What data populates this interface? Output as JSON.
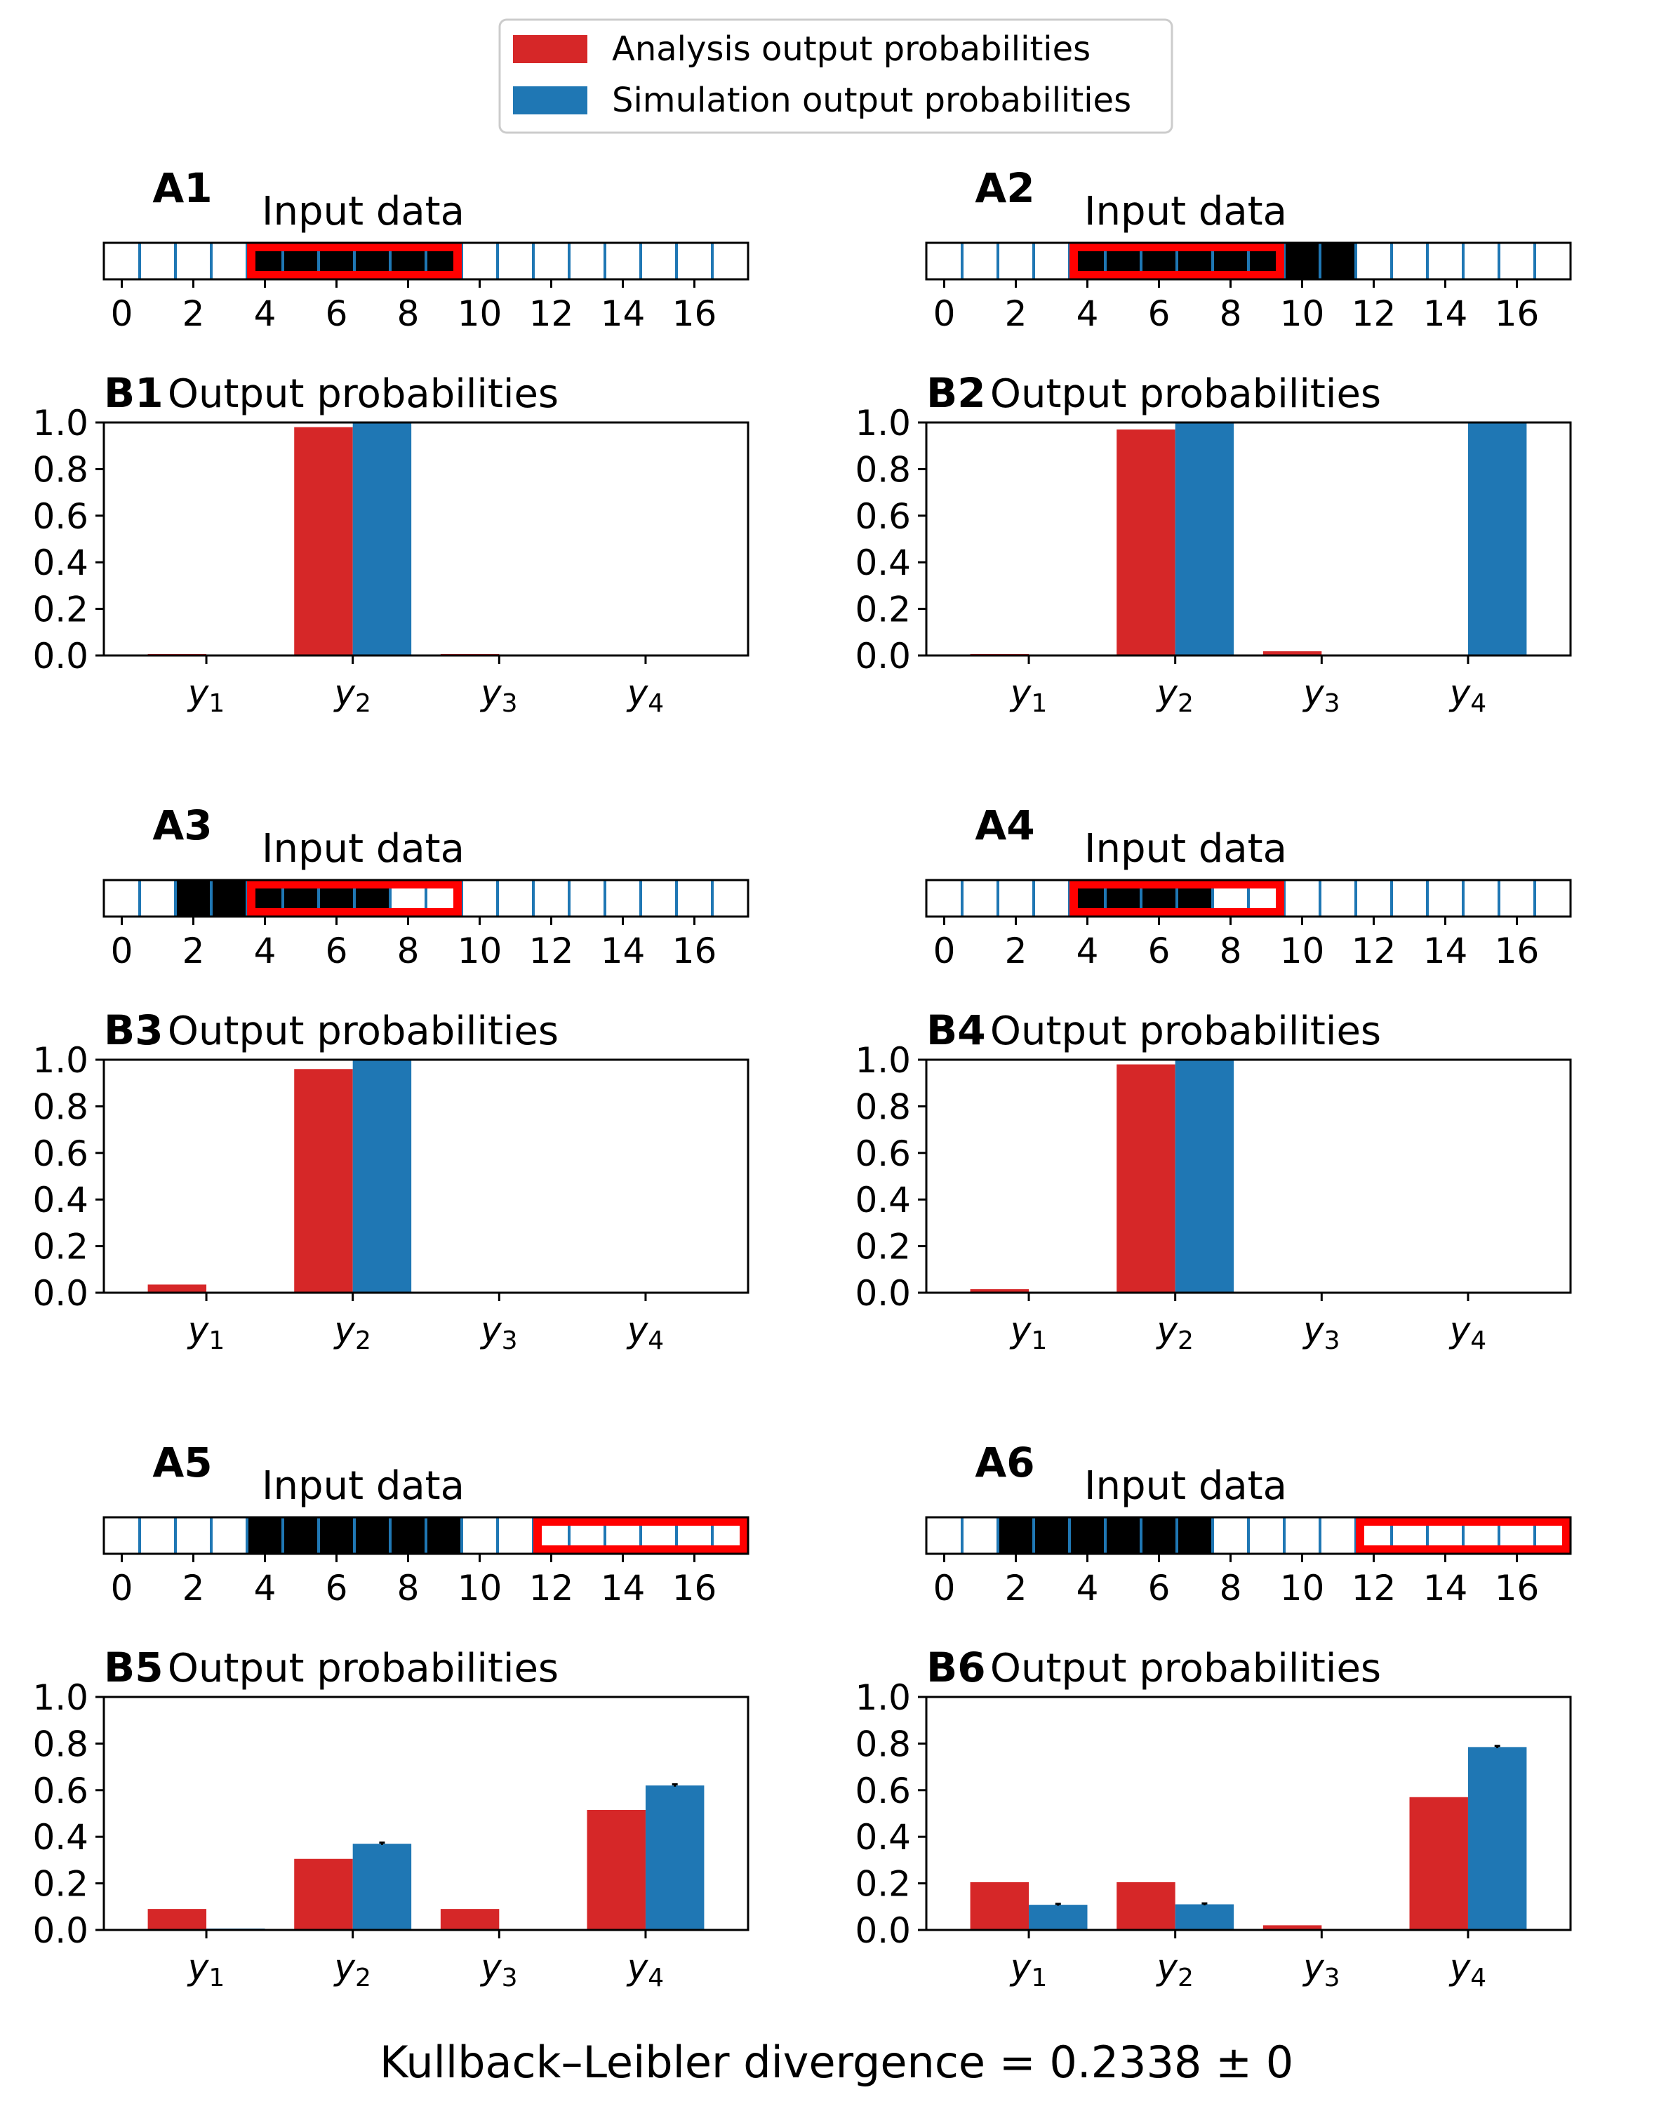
{
  "colors": {
    "analysis": "#d62728",
    "simulation": "#1f77b4",
    "input_on": "#000000",
    "highlight": "#ff0000",
    "cell_divider": "#1f77b4"
  },
  "legend": {
    "placement": "top-center",
    "entries": [
      "Analysis output probabilities",
      "Simulation output probabilities"
    ]
  },
  "footer": {
    "kl_label": "Kullback–Leibler divergence = 0.2338 ± 0"
  },
  "chart_data": [
    {
      "panel": "A1",
      "type": "binary-strip",
      "title": "Input data",
      "n_cells": 18,
      "xlim": [
        -0.5,
        17.5
      ],
      "xticks": [
        0,
        2,
        4,
        6,
        8,
        10,
        12,
        14,
        16
      ],
      "active": [
        4,
        5,
        6,
        7,
        8,
        9
      ],
      "highlight": [
        4,
        9
      ]
    },
    {
      "panel": "B1",
      "type": "bar",
      "title": "Output probabilities",
      "categories": [
        "y1",
        "y2",
        "y3",
        "y4"
      ],
      "ylim": [
        0,
        1
      ],
      "yticks": [
        0.0,
        0.2,
        0.4,
        0.6,
        0.8,
        1.0
      ],
      "series": [
        {
          "name": "Analysis output probabilities",
          "values": [
            0.006,
            0.98,
            0.006,
            0.0
          ]
        },
        {
          "name": "Simulation output probabilities",
          "values": [
            0.0,
            1.0,
            0.0,
            0.0
          ]
        }
      ]
    },
    {
      "panel": "A2",
      "type": "binary-strip",
      "title": "Input data",
      "n_cells": 18,
      "xlim": [
        -0.5,
        17.5
      ],
      "xticks": [
        0,
        2,
        4,
        6,
        8,
        10,
        12,
        14,
        16
      ],
      "active": [
        4,
        5,
        6,
        7,
        8,
        9,
        10,
        11
      ],
      "highlight": [
        4,
        9
      ]
    },
    {
      "panel": "B2",
      "type": "bar",
      "title": "Output probabilities",
      "categories": [
        "y1",
        "y2",
        "y3",
        "y4"
      ],
      "ylim": [
        0,
        1
      ],
      "yticks": [
        0.0,
        0.2,
        0.4,
        0.6,
        0.8,
        1.0
      ],
      "series": [
        {
          "name": "Analysis output probabilities",
          "values": [
            0.006,
            0.97,
            0.018,
            0.0
          ]
        },
        {
          "name": "Simulation output probabilities",
          "values": [
            0.0,
            1.0,
            0.0,
            1.0
          ]
        }
      ]
    },
    {
      "panel": "A3",
      "type": "binary-strip",
      "title": "Input data",
      "n_cells": 18,
      "xlim": [
        -0.5,
        17.5
      ],
      "xticks": [
        0,
        2,
        4,
        6,
        8,
        10,
        12,
        14,
        16
      ],
      "active": [
        2,
        3,
        4,
        5,
        6,
        7
      ],
      "highlight": [
        4,
        9
      ]
    },
    {
      "panel": "B3",
      "type": "bar",
      "title": "Output probabilities",
      "categories": [
        "y1",
        "y2",
        "y3",
        "y4"
      ],
      "ylim": [
        0,
        1
      ],
      "yticks": [
        0.0,
        0.2,
        0.4,
        0.6,
        0.8,
        1.0
      ],
      "series": [
        {
          "name": "Analysis output probabilities",
          "values": [
            0.035,
            0.96,
            0.0,
            0.0
          ]
        },
        {
          "name": "Simulation output probabilities",
          "values": [
            0.0,
            1.0,
            0.0,
            0.0
          ]
        }
      ]
    },
    {
      "panel": "A4",
      "type": "binary-strip",
      "title": "Input data",
      "n_cells": 18,
      "xlim": [
        -0.5,
        17.5
      ],
      "xticks": [
        0,
        2,
        4,
        6,
        8,
        10,
        12,
        14,
        16
      ],
      "active": [
        4,
        5,
        6,
        7
      ],
      "highlight": [
        4,
        9
      ]
    },
    {
      "panel": "B4",
      "type": "bar",
      "title": "Output probabilities",
      "categories": [
        "y1",
        "y2",
        "y3",
        "y4"
      ],
      "ylim": [
        0,
        1
      ],
      "yticks": [
        0.0,
        0.2,
        0.4,
        0.6,
        0.8,
        1.0
      ],
      "series": [
        {
          "name": "Analysis output probabilities",
          "values": [
            0.015,
            0.98,
            0.0,
            0.0
          ]
        },
        {
          "name": "Simulation output probabilities",
          "values": [
            0.0,
            1.0,
            0.0,
            0.0
          ]
        }
      ]
    },
    {
      "panel": "A5",
      "type": "binary-strip",
      "title": "Input data",
      "n_cells": 18,
      "xlim": [
        -0.5,
        17.5
      ],
      "xticks": [
        0,
        2,
        4,
        6,
        8,
        10,
        12,
        14,
        16
      ],
      "active": [
        4,
        5,
        6,
        7,
        8,
        9
      ],
      "highlight": [
        12,
        17
      ]
    },
    {
      "panel": "B5",
      "type": "bar",
      "title": "Output probabilities",
      "categories": [
        "y1",
        "y2",
        "y3",
        "y4"
      ],
      "ylim": [
        0,
        1
      ],
      "yticks": [
        0.0,
        0.2,
        0.4,
        0.6,
        0.8,
        1.0
      ],
      "series": [
        {
          "name": "Analysis output probabilities",
          "values": [
            0.09,
            0.305,
            0.09,
            0.515
          ]
        },
        {
          "name": "Simulation output probabilities",
          "values": [
            0.006,
            0.37,
            0.003,
            0.62
          ],
          "errors": [
            0,
            0.005,
            0,
            0.005
          ]
        }
      ]
    },
    {
      "panel": "A6",
      "type": "binary-strip",
      "title": "Input data",
      "n_cells": 18,
      "xlim": [
        -0.5,
        17.5
      ],
      "xticks": [
        0,
        2,
        4,
        6,
        8,
        10,
        12,
        14,
        16
      ],
      "active": [
        2,
        3,
        4,
        5,
        6,
        7
      ],
      "highlight": [
        12,
        17
      ]
    },
    {
      "panel": "B6",
      "type": "bar",
      "title": "Output probabilities",
      "categories": [
        "y1",
        "y2",
        "y3",
        "y4"
      ],
      "ylim": [
        0,
        1
      ],
      "yticks": [
        0.0,
        0.2,
        0.4,
        0.6,
        0.8,
        1.0
      ],
      "series": [
        {
          "name": "Analysis output probabilities",
          "values": [
            0.205,
            0.205,
            0.02,
            0.57
          ]
        },
        {
          "name": "Simulation output probabilities",
          "values": [
            0.108,
            0.11,
            0.0,
            0.785
          ],
          "errors": [
            0.004,
            0.004,
            0,
            0.005
          ]
        }
      ]
    }
  ]
}
